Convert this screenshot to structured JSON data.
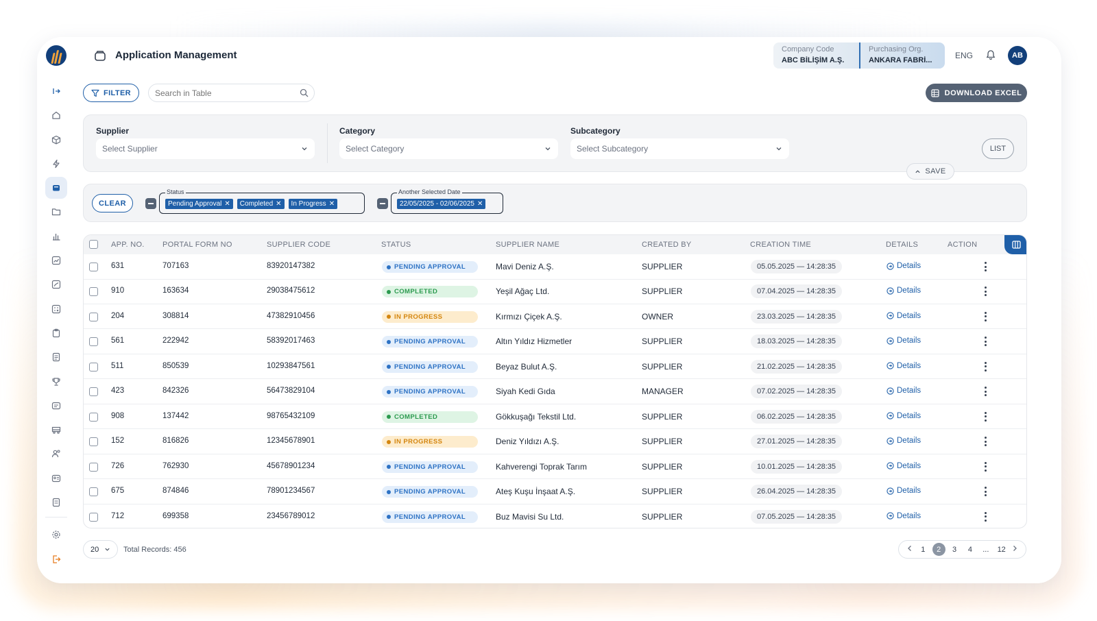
{
  "header": {
    "title": "Application Management",
    "company_code_label": "Company Code",
    "company_code_value": "ABC BİLİŞİM A.Ş.",
    "purchasing_org_label": "Purchasing Org.",
    "purchasing_org_value": "ANKARA FABRİ...",
    "language": "ENG",
    "avatar_initials": "AB"
  },
  "sidebar": {
    "items": [
      "expand-icon",
      "home-icon",
      "cube-icon",
      "bolt-icon",
      "inbox-icon",
      "folder-icon",
      "bar-chart-icon",
      "trend-icon",
      "report-icon",
      "calculator-icon",
      "clipboard-icon",
      "document-icon",
      "trophy-icon",
      "card-icon",
      "truck-icon",
      "users-icon",
      "id-card-icon",
      "invoice-icon"
    ],
    "active_index": 4,
    "bottom": [
      "settings-icon",
      "logout-icon"
    ]
  },
  "toolbar": {
    "filter_label": "FILTER",
    "search_placeholder": "Search in Table",
    "excel_label": "DOWNLOAD EXCEL"
  },
  "filters": {
    "supplier_label": "Supplier",
    "supplier_placeholder": "Select Supplier",
    "category_label": "Category",
    "category_placeholder": "Select Category",
    "subcategory_label": "Subcategory",
    "subcategory_placeholder": "Select Subcategory",
    "list_label": "LIST",
    "save_label": "SAVE"
  },
  "chips": {
    "clear_label": "CLEAR",
    "status_label": "Status",
    "status_chips": [
      "Pending Approval",
      "Completed",
      "In Progress"
    ],
    "date_label": "Another Selected Date",
    "date_chip": "22/05/2025 - 02/06/2025"
  },
  "table": {
    "columns": [
      "APP. NO.",
      "PORTAL FORM NO",
      "SUPPLIER CODE",
      "STATUS",
      "SUPPLIER NAME",
      "CREATED BY",
      "CREATION TIME",
      "DETAILS",
      "ACTION"
    ],
    "details_label": "Details",
    "rows": [
      {
        "app_no": "631",
        "form_no": "707163",
        "code": "83920147382",
        "status": "PENDING APPROVAL",
        "kind": "pending",
        "name": "Mavi Deniz A.Ş.",
        "created_by": "SUPPLIER",
        "time": "05.05.2025 — 14:28:35"
      },
      {
        "app_no": "910",
        "form_no": "163634",
        "code": "29038475612",
        "status": "COMPLETED",
        "kind": "completed",
        "name": "Yeşil Ağaç Ltd.",
        "created_by": "SUPPLIER",
        "time": "07.04.2025 — 14:28:35"
      },
      {
        "app_no": "204",
        "form_no": "308814",
        "code": "47382910456",
        "status": "IN PROGRESS",
        "kind": "progress",
        "name": "Kırmızı Çiçek A.Ş.",
        "created_by": "OWNER",
        "time": "23.03.2025 — 14:28:35"
      },
      {
        "app_no": "561",
        "form_no": "222942",
        "code": "58392017463",
        "status": "PENDING APPROVAL",
        "kind": "pending",
        "name": "Altın Yıldız Hizmetler",
        "created_by": "SUPPLIER",
        "time": "18.03.2025 — 14:28:35"
      },
      {
        "app_no": "511",
        "form_no": "850539",
        "code": "10293847561",
        "status": "PENDING APPROVAL",
        "kind": "pending",
        "name": "Beyaz Bulut A.Ş.",
        "created_by": "SUPPLIER",
        "time": "21.02.2025 — 14:28:35"
      },
      {
        "app_no": "423",
        "form_no": "842326",
        "code": "56473829104",
        "status": "PENDING APPROVAL",
        "kind": "pending",
        "name": "Siyah Kedi Gıda",
        "created_by": "MANAGER",
        "time": "07.02.2025 — 14:28:35"
      },
      {
        "app_no": "908",
        "form_no": "137442",
        "code": "98765432109",
        "status": "COMPLETED",
        "kind": "completed",
        "name": "Gökkuşağı Tekstil Ltd.",
        "created_by": "SUPPLIER",
        "time": "06.02.2025 — 14:28:35"
      },
      {
        "app_no": "152",
        "form_no": "816826",
        "code": "12345678901",
        "status": "IN PROGRESS",
        "kind": "progress",
        "name": "Deniz Yıldızı A.Ş.",
        "created_by": "SUPPLIER",
        "time": "27.01.2025 — 14:28:35"
      },
      {
        "app_no": "726",
        "form_no": "762930",
        "code": "45678901234",
        "status": "PENDING APPROVAL",
        "kind": "pending",
        "name": "Kahverengi Toprak Tarım",
        "created_by": "SUPPLIER",
        "time": "10.01.2025 — 14:28:35"
      },
      {
        "app_no": "675",
        "form_no": "874846",
        "code": "78901234567",
        "status": "PENDING APPROVAL",
        "kind": "pending",
        "name": "Ateş Kuşu İnşaat A.Ş.",
        "created_by": "SUPPLIER",
        "time": "26.04.2025 — 14:28:35"
      },
      {
        "app_no": "712",
        "form_no": "699358",
        "code": "23456789012",
        "status": "PENDING APPROVAL",
        "kind": "pending",
        "name": "Buz Mavisi Su Ltd.",
        "created_by": "SUPPLIER",
        "time": "07.05.2025 — 14:28:35"
      }
    ]
  },
  "footer": {
    "page_size": "20",
    "total_records": "Total Records: 456",
    "pages": [
      "1",
      "2",
      "3",
      "4",
      "...",
      "12"
    ],
    "current_page": "2"
  },
  "colors": {
    "primary": "#1f5fa8",
    "navy": "#123f7a",
    "pending": "#2d72c4",
    "completed": "#2b9a4e",
    "progress": "#d4860f"
  }
}
